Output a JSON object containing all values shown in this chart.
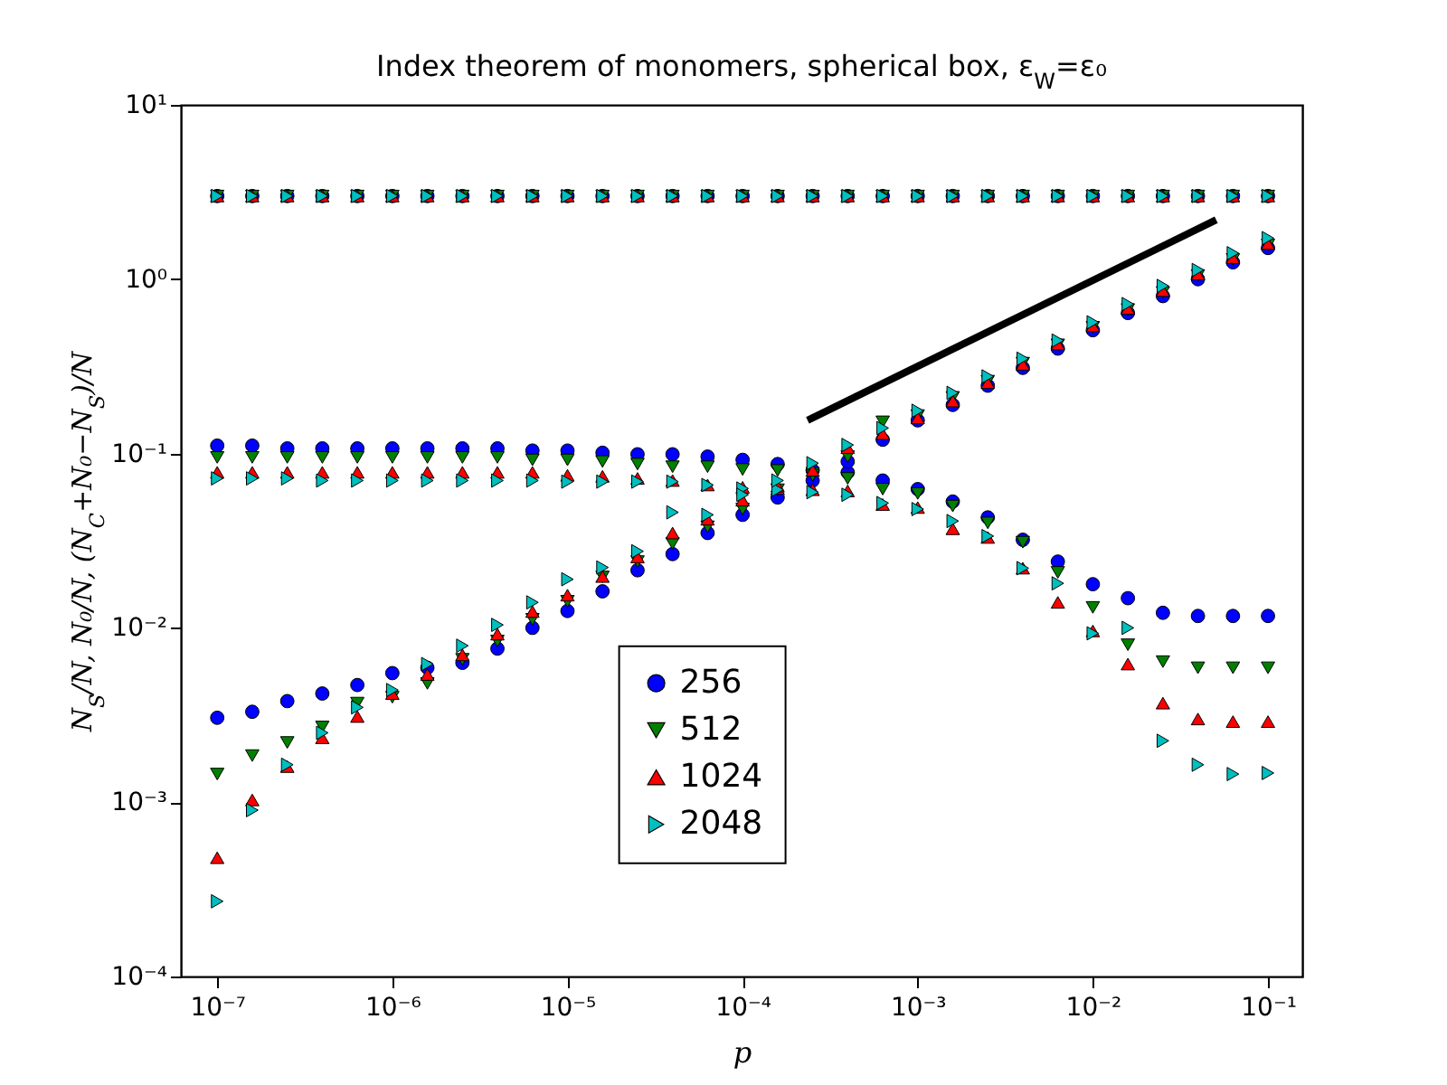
{
  "chart_data": {
    "type": "scatter",
    "title": "Index theorem of monomers, spherical box, ε$_{W}$=ε₀",
    "xlabel": "p",
    "ylabel": "N$_{S}$/N, N₀/N, (N$_{C}$+N₀−N$_{S}$)/N",
    "log": "xy",
    "grid": false,
    "legend": "bottom",
    "x": [
      1e-07,
      1.585e-07,
      2.512e-07,
      3.981e-07,
      6.31e-07,
      1e-06,
      1.585e-06,
      2.512e-06,
      3.981e-06,
      6.31e-06,
      1e-05,
      1.585e-05,
      2.512e-05,
      3.981e-05,
      6.31e-05,
      0.0001,
      0.0001585,
      0.0002512,
      0.0003981,
      0.000631,
      0.001,
      0.001585,
      0.002512,
      0.003981,
      0.00631,
      0.01,
      0.01585,
      0.02512,
      0.03981,
      0.0631,
      0.1,
      1e-07,
      1.585e-07,
      2.512e-07,
      3.981e-07,
      6.31e-07,
      1e-06,
      1.585e-06,
      2.512e-06,
      3.981e-06,
      6.31e-06,
      1e-05,
      1.585e-05,
      2.512e-05,
      3.981e-05,
      6.31e-05,
      0.0001,
      0.0001585,
      0.0002512,
      0.0003981,
      0.000631,
      0.001,
      0.001585,
      0.002512,
      0.003981,
      0.00631,
      0.01,
      0.01585,
      0.02512,
      0.03981,
      0.0631,
      0.1,
      1e-07,
      1.585e-07,
      2.512e-07,
      3.981e-07,
      6.31e-07,
      1e-06,
      1.585e-06,
      2.512e-06,
      3.981e-06,
      6.31e-06,
      1e-05,
      1.585e-05,
      2.512e-05,
      3.981e-05,
      6.31e-05,
      0.0001,
      0.0001585,
      0.0002512,
      0.0003981,
      0.000631,
      0.001,
      0.001585,
      0.002512,
      0.003981,
      0.00631,
      0.01,
      0.01585,
      0.02512,
      0.03981,
      0.0631,
      0.1
    ],
    "xlim": [
      6.2e-08,
      0.157
    ],
    "xticks": [
      {
        "value": 1e-07,
        "label": "10⁻⁷"
      },
      {
        "value": 1e-06,
        "label": "10⁻⁶"
      },
      {
        "value": 1e-05,
        "label": "10⁻⁵"
      },
      {
        "value": 0.0001,
        "label": "10⁻⁴"
      },
      {
        "value": 0.001,
        "label": "10⁻³"
      },
      {
        "value": 0.01,
        "label": "10⁻²"
      },
      {
        "value": 0.1,
        "label": "10⁻¹"
      }
    ],
    "ylim": [
      0.0001,
      10
    ],
    "yticks": [
      {
        "value": 0.0001,
        "label": "10⁻⁴"
      },
      {
        "value": 0.001,
        "label": "10⁻³"
      },
      {
        "value": 0.01,
        "label": "10⁻²"
      },
      {
        "value": 0.1,
        "label": "10⁻¹"
      },
      {
        "value": 1,
        "label": "10⁰"
      },
      {
        "value": 10,
        "label": "10¹"
      }
    ],
    "series": [
      {
        "name": "256",
        "color": "#0000ff",
        "marker": "circle",
        "values": [
          3,
          3,
          3,
          3,
          3,
          3,
          3,
          3,
          3,
          3,
          3,
          3,
          3,
          3,
          3,
          3,
          3,
          3,
          3,
          3,
          3,
          3,
          3,
          3,
          3,
          3,
          3,
          3,
          3,
          3,
          3,
          0.111,
          0.111,
          0.107,
          0.107,
          0.107,
          0.107,
          0.107,
          0.107,
          0.107,
          0.104,
          0.104,
          0.101,
          0.099,
          0.099,
          0.096,
          0.092,
          0.087,
          0.08,
          0.078,
          0.07,
          0.0625,
          0.053,
          0.043,
          0.032,
          0.024,
          0.0178,
          0.0148,
          0.0122,
          0.0117,
          0.0117,
          0.0117,
          0.00305,
          0.0033,
          0.0038,
          0.0042,
          0.0047,
          0.0055,
          0.0059,
          0.0063,
          0.0076,
          0.01,
          0.0125,
          0.0162,
          0.0214,
          0.0265,
          0.035,
          0.0445,
          0.056,
          0.07,
          0.09,
          0.12,
          0.155,
          0.19,
          0.245,
          0.31,
          0.4,
          0.51,
          0.64,
          0.8,
          1.0,
          1.25,
          1.51
        ]
      },
      {
        "name": "512",
        "color": "#008000",
        "marker": "triangle-down",
        "values": [
          3,
          3,
          3,
          3,
          3,
          3,
          3,
          3,
          3,
          3,
          3,
          3,
          3,
          3,
          3,
          3,
          3,
          3,
          3,
          3,
          3,
          3,
          3,
          3,
          3,
          3,
          3,
          3,
          3,
          3,
          3,
          0.095,
          0.095,
          0.095,
          0.095,
          0.095,
          0.095,
          0.095,
          0.095,
          0.095,
          0.092,
          0.092,
          0.09,
          0.087,
          0.084,
          0.084,
          0.081,
          0.08,
          0.077,
          0.072,
          0.0625,
          0.059,
          0.05,
          0.04,
          0.031,
          0.0208,
          0.0131,
          0.008,
          0.0064,
          0.0059,
          0.0059,
          0.0059,
          0.00145,
          0.00185,
          0.0022,
          0.0027,
          0.0037,
          0.004,
          0.0048,
          0.0066,
          0.0084,
          0.0112,
          0.0142,
          0.0196,
          0.024,
          0.0305,
          0.038,
          0.048,
          0.062,
          0.075,
          0.096,
          0.152,
          0.165,
          0.21,
          0.26,
          0.33,
          0.42,
          0.53,
          0.67,
          0.84,
          1.05,
          1.3,
          1.57
        ]
      },
      {
        "name": "1024",
        "color": "#ff0000",
        "marker": "triangle",
        "values": [
          3,
          3,
          3,
          3,
          3,
          3,
          3,
          3,
          3,
          3,
          3,
          3,
          3,
          3,
          3,
          3,
          3,
          3,
          3,
          3,
          3,
          3,
          3,
          3,
          3,
          3,
          3,
          3,
          3,
          3,
          3,
          0.078,
          0.078,
          0.078,
          0.078,
          0.078,
          0.078,
          0.078,
          0.078,
          0.078,
          0.078,
          0.075,
          0.074,
          0.072,
          0.07,
          0.066,
          0.064,
          0.063,
          0.062,
          0.061,
          0.051,
          0.049,
          0.037,
          0.033,
          0.022,
          0.014,
          0.0096,
          0.0062,
          0.0037,
          0.003,
          0.0029,
          0.0029,
          0.00048,
          0.00103,
          0.0016,
          0.00234,
          0.0031,
          0.0042,
          0.0054,
          0.007,
          0.0092,
          0.0124,
          0.0154,
          0.0197,
          0.0255,
          0.035,
          0.042,
          0.054,
          0.065,
          0.08,
          0.108,
          0.13,
          0.16,
          0.2,
          0.255,
          0.325,
          0.425,
          0.54,
          0.68,
          0.86,
          1.07,
          1.33,
          1.6
        ]
      },
      {
        "name": "2048",
        "color": "#00bfbf",
        "marker": "triangle-right",
        "values": [
          3,
          3,
          3,
          3,
          3,
          3,
          3,
          3,
          3,
          3,
          3,
          3,
          3,
          3,
          3,
          3,
          3,
          3,
          3,
          3,
          3,
          3,
          3,
          3,
          3,
          3,
          3,
          3,
          3,
          3,
          3,
          0.072,
          0.072,
          0.072,
          0.07,
          0.07,
          0.07,
          0.07,
          0.07,
          0.07,
          0.07,
          0.069,
          0.069,
          0.069,
          0.069,
          0.066,
          0.063,
          0.062,
          0.06,
          0.058,
          0.052,
          0.048,
          0.041,
          0.0336,
          0.022,
          0.018,
          0.0093,
          0.01,
          0.00225,
          0.00164,
          0.00145,
          0.00147,
          0.00027,
          0.0009,
          0.00164,
          0.0025,
          0.0035,
          0.0044,
          0.0062,
          0.0079,
          0.0104,
          0.014,
          0.019,
          0.0222,
          0.0275,
          0.046,
          0.0445,
          0.058,
          0.07,
          0.088,
          0.112,
          0.14,
          0.176,
          0.223,
          0.277,
          0.35,
          0.445,
          0.566,
          0.72,
          0.915,
          1.13,
          1.41,
          1.72
        ]
      },
      {
        "type": "line",
        "color": "#000000",
        "x": [
          0.000235,
          0.0506
        ],
        "values": [
          0.155,
          2.19
        ]
      }
    ]
  }
}
